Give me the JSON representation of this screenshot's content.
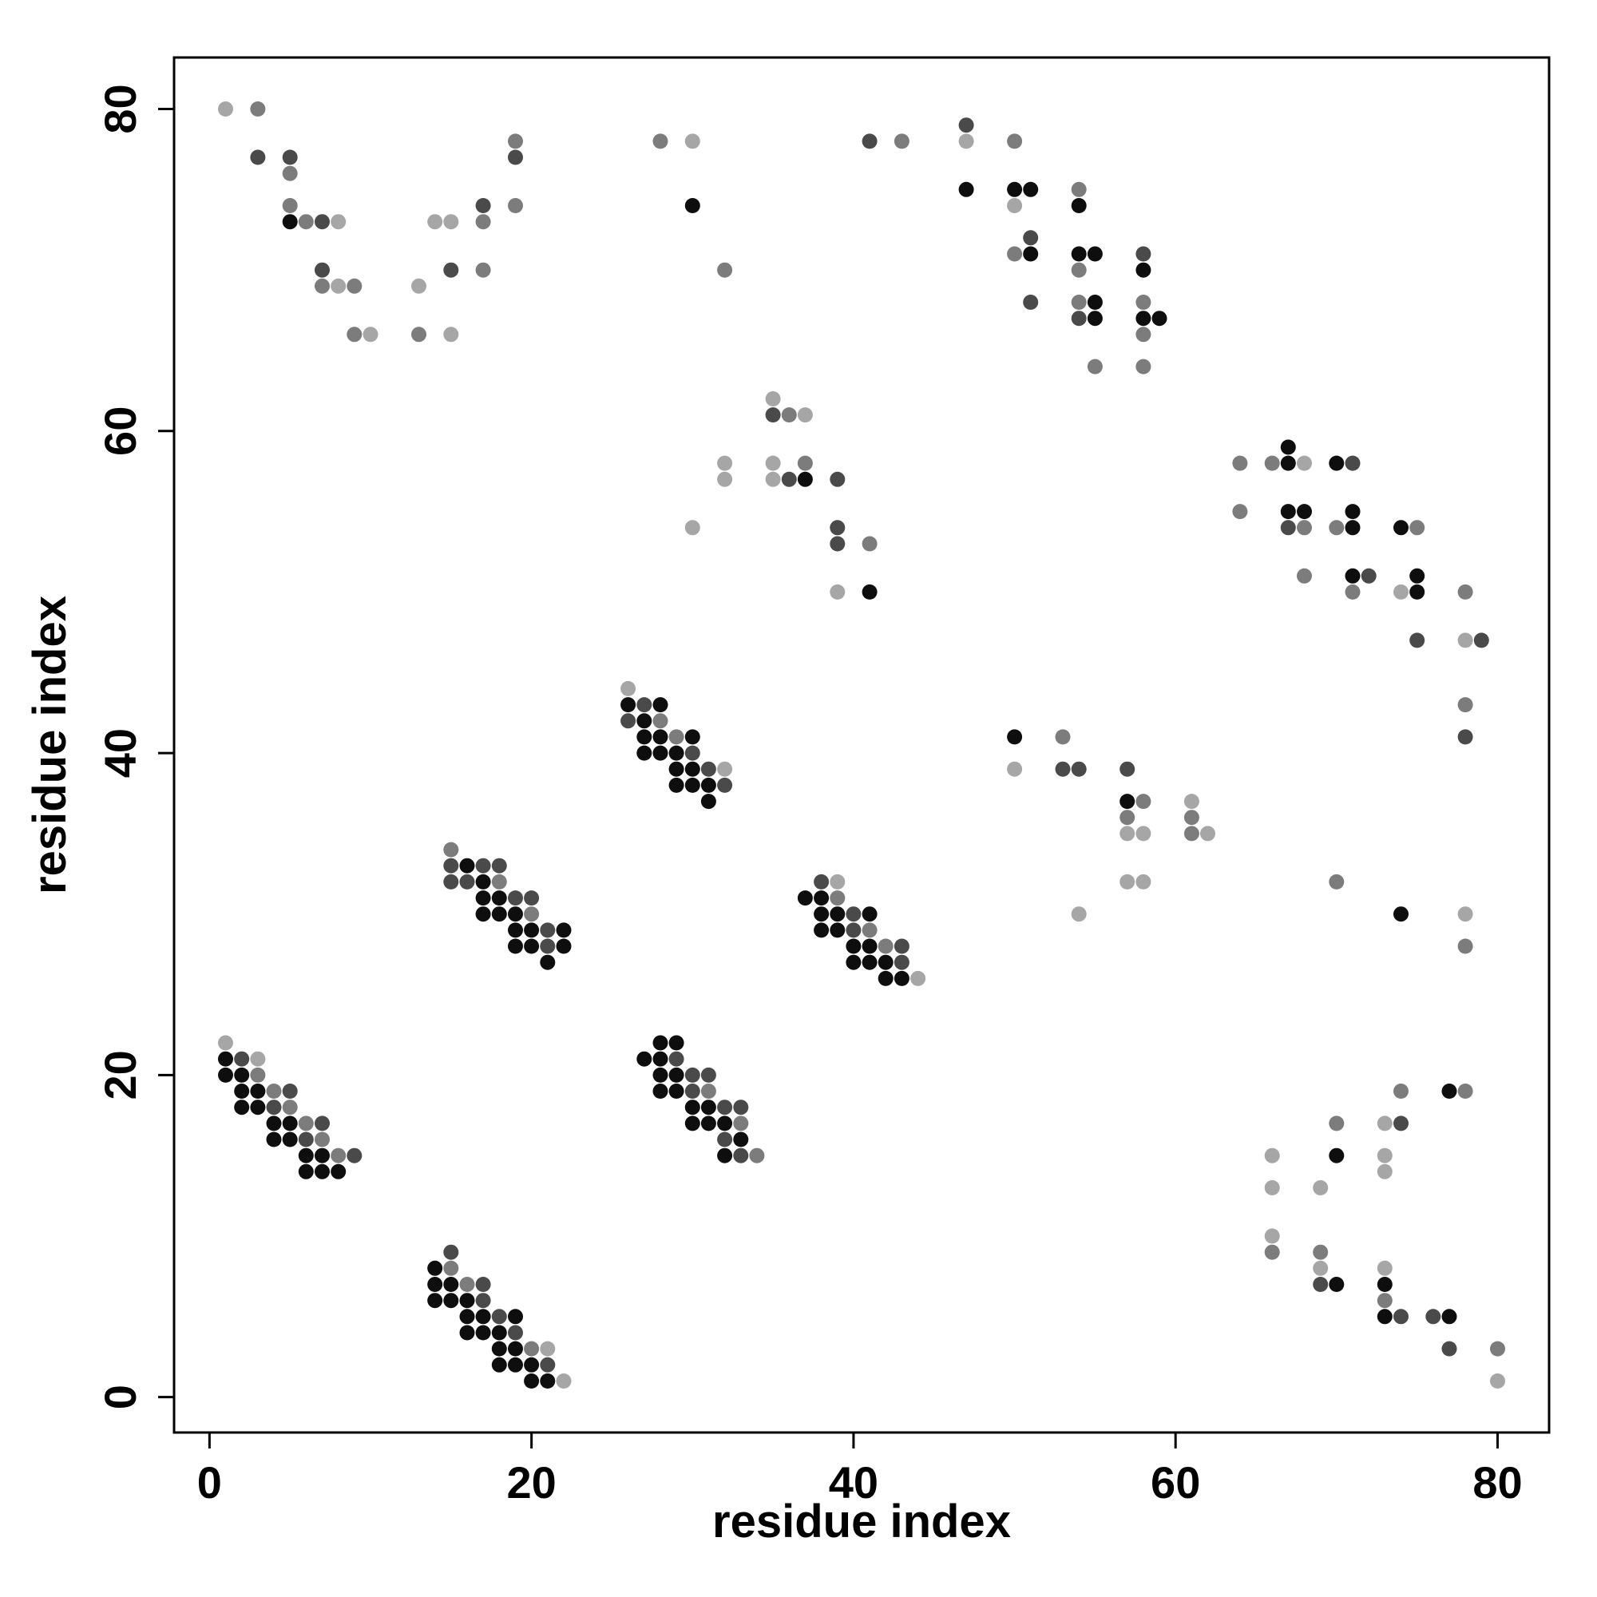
{
  "chart_data": {
    "type": "scatter",
    "title": "",
    "xlabel": "residue index",
    "ylabel": "residue index",
    "xlim": [
      -2.2,
      83.2
    ],
    "ylim": [
      -2.2,
      83.2
    ],
    "x_ticks": [
      "0",
      "20",
      "40",
      "60",
      "80"
    ],
    "y_ticks": [
      "0",
      "20",
      "40",
      "60",
      "80"
    ],
    "grid": false,
    "legend": "none",
    "color_scale": "grayscale: darker = stronger contact, levels 1 (light) to 5 (black)",
    "points": [
      [
        1,
        80,
        2
      ],
      [
        3,
        80,
        3
      ],
      [
        3,
        77,
        4
      ],
      [
        5,
        77,
        4
      ],
      [
        5,
        76,
        3
      ],
      [
        5,
        74,
        3
      ],
      [
        5,
        73,
        5
      ],
      [
        6,
        73,
        3
      ],
      [
        7,
        73,
        4
      ],
      [
        8,
        73,
        2
      ],
      [
        7,
        70,
        4
      ],
      [
        7,
        69,
        3
      ],
      [
        8,
        69,
        2
      ],
      [
        9,
        69,
        3
      ],
      [
        9,
        66,
        3
      ],
      [
        10,
        66,
        2
      ],
      [
        13,
        69,
        2
      ],
      [
        14,
        73,
        2
      ],
      [
        15,
        73,
        2
      ],
      [
        15,
        70,
        4
      ],
      [
        13,
        66,
        3
      ],
      [
        15,
        66,
        2
      ],
      [
        17,
        74,
        4
      ],
      [
        17,
        73,
        3
      ],
      [
        17,
        70,
        3
      ],
      [
        19,
        78,
        3
      ],
      [
        19,
        77,
        4
      ],
      [
        19,
        74,
        3
      ],
      [
        28,
        78,
        3
      ],
      [
        30,
        78,
        2
      ],
      [
        30,
        74,
        5
      ],
      [
        32,
        70,
        3
      ],
      [
        41,
        78,
        4
      ],
      [
        43,
        78,
        3
      ],
      [
        47,
        79,
        4
      ],
      [
        47,
        78,
        2
      ],
      [
        47,
        75,
        5
      ],
      [
        50,
        78,
        3
      ],
      [
        50,
        75,
        5
      ],
      [
        51,
        75,
        5
      ],
      [
        50,
        74,
        2
      ],
      [
        50,
        71,
        3
      ],
      [
        51,
        72,
        4
      ],
      [
        51,
        71,
        5
      ],
      [
        51,
        68,
        4
      ],
      [
        54,
        75,
        3
      ],
      [
        54,
        74,
        5
      ],
      [
        54,
        71,
        5
      ],
      [
        55,
        71,
        5
      ],
      [
        54,
        70,
        3
      ],
      [
        54,
        68,
        3
      ],
      [
        55,
        68,
        5
      ],
      [
        54,
        67,
        4
      ],
      [
        55,
        67,
        5
      ],
      [
        55,
        64,
        3
      ],
      [
        58,
        71,
        4
      ],
      [
        58,
        70,
        5
      ],
      [
        58,
        68,
        3
      ],
      [
        58,
        67,
        5
      ],
      [
        59,
        67,
        5
      ],
      [
        58,
        66,
        3
      ],
      [
        58,
        64,
        3
      ],
      [
        35,
        62,
        2
      ],
      [
        35,
        61,
        4
      ],
      [
        36,
        61,
        3
      ],
      [
        37,
        61,
        2
      ],
      [
        32,
        58,
        2
      ],
      [
        32,
        57,
        2
      ],
      [
        35,
        58,
        2
      ],
      [
        35,
        57,
        2
      ],
      [
        36,
        57,
        4
      ],
      [
        37,
        58,
        3
      ],
      [
        37,
        57,
        5
      ],
      [
        30,
        54,
        2
      ],
      [
        39,
        57,
        4
      ],
      [
        39,
        54,
        4
      ],
      [
        39,
        53,
        4
      ],
      [
        41,
        53,
        3
      ],
      [
        39,
        50,
        2
      ],
      [
        41,
        50,
        5
      ],
      [
        64,
        58,
        3
      ],
      [
        64,
        55,
        3
      ],
      [
        66,
        58,
        3
      ],
      [
        67,
        59,
        5
      ],
      [
        67,
        58,
        5
      ],
      [
        68,
        58,
        2
      ],
      [
        67,
        55,
        5
      ],
      [
        68,
        55,
        5
      ],
      [
        67,
        54,
        4
      ],
      [
        68,
        54,
        3
      ],
      [
        68,
        51,
        3
      ],
      [
        70,
        58,
        5
      ],
      [
        71,
        58,
        4
      ],
      [
        70,
        54,
        3
      ],
      [
        71,
        55,
        5
      ],
      [
        71,
        54,
        5
      ],
      [
        71,
        51,
        5
      ],
      [
        72,
        51,
        4
      ],
      [
        71,
        50,
        3
      ],
      [
        74,
        54,
        5
      ],
      [
        75,
        54,
        3
      ],
      [
        75,
        51,
        5
      ],
      [
        74,
        50,
        2
      ],
      [
        75,
        50,
        5
      ],
      [
        75,
        47,
        4
      ],
      [
        78,
        50,
        3
      ],
      [
        78,
        47,
        2
      ],
      [
        79,
        47,
        4
      ],
      [
        78,
        43,
        3
      ],
      [
        78,
        41,
        4
      ],
      [
        26,
        44,
        2
      ],
      [
        26,
        43,
        5
      ],
      [
        27,
        43,
        4
      ],
      [
        28,
        43,
        5
      ],
      [
        26,
        42,
        4
      ],
      [
        27,
        42,
        5
      ],
      [
        28,
        42,
        3
      ],
      [
        27,
        41,
        5
      ],
      [
        28,
        41,
        5
      ],
      [
        29,
        41,
        3
      ],
      [
        30,
        41,
        5
      ],
      [
        27,
        40,
        5
      ],
      [
        28,
        40,
        5
      ],
      [
        29,
        40,
        5
      ],
      [
        30,
        40,
        4
      ],
      [
        29,
        39,
        5
      ],
      [
        30,
        39,
        5
      ],
      [
        31,
        39,
        4
      ],
      [
        32,
        39,
        2
      ],
      [
        29,
        38,
        5
      ],
      [
        30,
        38,
        5
      ],
      [
        31,
        38,
        5
      ],
      [
        32,
        38,
        4
      ],
      [
        31,
        37,
        5
      ],
      [
        50,
        41,
        5
      ],
      [
        50,
        39,
        2
      ],
      [
        53,
        41,
        3
      ],
      [
        53,
        39,
        4
      ],
      [
        54,
        39,
        4
      ],
      [
        57,
        39,
        4
      ],
      [
        57,
        37,
        5
      ],
      [
        58,
        37,
        3
      ],
      [
        57,
        36,
        3
      ],
      [
        57,
        35,
        2
      ],
      [
        58,
        35,
        2
      ],
      [
        61,
        37,
        2
      ],
      [
        61,
        36,
        3
      ],
      [
        61,
        35,
        3
      ],
      [
        62,
        35,
        2
      ],
      [
        57,
        32,
        2
      ],
      [
        58,
        32,
        2
      ],
      [
        54,
        30,
        2
      ],
      [
        70,
        32,
        3
      ],
      [
        74,
        30,
        5
      ],
      [
        78,
        30,
        2
      ],
      [
        78,
        28,
        3
      ],
      [
        15,
        34,
        3
      ],
      [
        15,
        33,
        4
      ],
      [
        16,
        33,
        5
      ],
      [
        17,
        33,
        4
      ],
      [
        18,
        33,
        4
      ],
      [
        15,
        32,
        4
      ],
      [
        16,
        32,
        4
      ],
      [
        17,
        32,
        5
      ],
      [
        18,
        32,
        3
      ],
      [
        17,
        31,
        5
      ],
      [
        18,
        31,
        5
      ],
      [
        19,
        31,
        4
      ],
      [
        20,
        31,
        4
      ],
      [
        17,
        30,
        5
      ],
      [
        18,
        30,
        5
      ],
      [
        19,
        30,
        5
      ],
      [
        20,
        30,
        3
      ],
      [
        19,
        29,
        5
      ],
      [
        20,
        29,
        5
      ],
      [
        21,
        29,
        4
      ],
      [
        22,
        29,
        5
      ],
      [
        19,
        28,
        5
      ],
      [
        20,
        28,
        5
      ],
      [
        21,
        28,
        4
      ],
      [
        22,
        28,
        5
      ],
      [
        21,
        27,
        5
      ],
      [
        38,
        32,
        4
      ],
      [
        39,
        32,
        2
      ],
      [
        37,
        31,
        5
      ],
      [
        38,
        31,
        5
      ],
      [
        39,
        31,
        3
      ],
      [
        38,
        30,
        5
      ],
      [
        39,
        30,
        5
      ],
      [
        40,
        30,
        4
      ],
      [
        41,
        30,
        5
      ],
      [
        38,
        29,
        5
      ],
      [
        39,
        29,
        5
      ],
      [
        40,
        29,
        4
      ],
      [
        41,
        29,
        3
      ],
      [
        40,
        28,
        5
      ],
      [
        41,
        28,
        5
      ],
      [
        42,
        28,
        3
      ],
      [
        43,
        28,
        4
      ],
      [
        40,
        27,
        5
      ],
      [
        41,
        27,
        5
      ],
      [
        42,
        27,
        5
      ],
      [
        43,
        27,
        4
      ],
      [
        42,
        26,
        5
      ],
      [
        43,
        26,
        5
      ],
      [
        44,
        26,
        2
      ],
      [
        1,
        22,
        2
      ],
      [
        1,
        21,
        5
      ],
      [
        2,
        21,
        4
      ],
      [
        3,
        21,
        2
      ],
      [
        1,
        20,
        5
      ],
      [
        2,
        20,
        5
      ],
      [
        3,
        20,
        3
      ],
      [
        2,
        19,
        5
      ],
      [
        3,
        19,
        5
      ],
      [
        4,
        19,
        3
      ],
      [
        5,
        19,
        4
      ],
      [
        2,
        18,
        5
      ],
      [
        3,
        18,
        5
      ],
      [
        4,
        18,
        4
      ],
      [
        5,
        18,
        3
      ],
      [
        4,
        17,
        5
      ],
      [
        5,
        17,
        5
      ],
      [
        6,
        17,
        3
      ],
      [
        7,
        17,
        4
      ],
      [
        4,
        16,
        5
      ],
      [
        5,
        16,
        5
      ],
      [
        6,
        16,
        4
      ],
      [
        7,
        16,
        3
      ],
      [
        6,
        15,
        5
      ],
      [
        7,
        15,
        5
      ],
      [
        8,
        15,
        3
      ],
      [
        9,
        15,
        4
      ],
      [
        6,
        14,
        5
      ],
      [
        7,
        14,
        5
      ],
      [
        8,
        14,
        5
      ],
      [
        28,
        22,
        5
      ],
      [
        29,
        22,
        5
      ],
      [
        27,
        21,
        5
      ],
      [
        28,
        21,
        5
      ],
      [
        29,
        21,
        4
      ],
      [
        28,
        20,
        5
      ],
      [
        29,
        20,
        5
      ],
      [
        30,
        20,
        4
      ],
      [
        31,
        20,
        4
      ],
      [
        28,
        19,
        5
      ],
      [
        29,
        19,
        5
      ],
      [
        30,
        19,
        4
      ],
      [
        31,
        19,
        3
      ],
      [
        30,
        18,
        5
      ],
      [
        31,
        18,
        5
      ],
      [
        32,
        18,
        4
      ],
      [
        33,
        18,
        4
      ],
      [
        30,
        17,
        5
      ],
      [
        31,
        17,
        5
      ],
      [
        32,
        17,
        5
      ],
      [
        33,
        17,
        3
      ],
      [
        32,
        16,
        4
      ],
      [
        33,
        16,
        5
      ],
      [
        32,
        15,
        5
      ],
      [
        33,
        15,
        4
      ],
      [
        34,
        15,
        3
      ],
      [
        66,
        15,
        2
      ],
      [
        66,
        13,
        2
      ],
      [
        66,
        10,
        2
      ],
      [
        66,
        9,
        3
      ],
      [
        69,
        13,
        2
      ],
      [
        69,
        9,
        3
      ],
      [
        69,
        8,
        2
      ],
      [
        69,
        7,
        4
      ],
      [
        70,
        7,
        5
      ],
      [
        70,
        17,
        3
      ],
      [
        70,
        15,
        5
      ],
      [
        73,
        17,
        2
      ],
      [
        74,
        17,
        4
      ],
      [
        74,
        19,
        3
      ],
      [
        73,
        15,
        2
      ],
      [
        73,
        14,
        2
      ],
      [
        73,
        8,
        2
      ],
      [
        73,
        7,
        5
      ],
      [
        73,
        6,
        3
      ],
      [
        73,
        5,
        5
      ],
      [
        74,
        5,
        4
      ],
      [
        76,
        5,
        4
      ],
      [
        77,
        5,
        5
      ],
      [
        77,
        19,
        5
      ],
      [
        78,
        19,
        3
      ],
      [
        77,
        3,
        4
      ],
      [
        80,
        3,
        3
      ],
      [
        80,
        1,
        2
      ],
      [
        15,
        9,
        4
      ],
      [
        15,
        8,
        3
      ],
      [
        14,
        8,
        5
      ],
      [
        14,
        7,
        5
      ],
      [
        15,
        7,
        5
      ],
      [
        16,
        7,
        3
      ],
      [
        17,
        7,
        4
      ],
      [
        14,
        6,
        5
      ],
      [
        15,
        6,
        5
      ],
      [
        16,
        6,
        5
      ],
      [
        17,
        6,
        4
      ],
      [
        16,
        5,
        5
      ],
      [
        17,
        5,
        5
      ],
      [
        18,
        5,
        4
      ],
      [
        19,
        5,
        5
      ],
      [
        16,
        4,
        5
      ],
      [
        17,
        4,
        5
      ],
      [
        18,
        4,
        5
      ],
      [
        19,
        4,
        4
      ],
      [
        18,
        3,
        5
      ],
      [
        19,
        3,
        5
      ],
      [
        20,
        3,
        3
      ],
      [
        21,
        3,
        2
      ],
      [
        18,
        2,
        5
      ],
      [
        19,
        2,
        5
      ],
      [
        20,
        2,
        5
      ],
      [
        21,
        2,
        4
      ],
      [
        20,
        1,
        5
      ],
      [
        21,
        1,
        5
      ],
      [
        22,
        1,
        2
      ]
    ]
  },
  "colors": {
    "level_1": "#c8c8c8",
    "level_2": "#a6a6a6",
    "level_3": "#7c7c7c",
    "level_4": "#4a4a4a",
    "level_5": "#0e0e0e",
    "axis": "#000000"
  }
}
